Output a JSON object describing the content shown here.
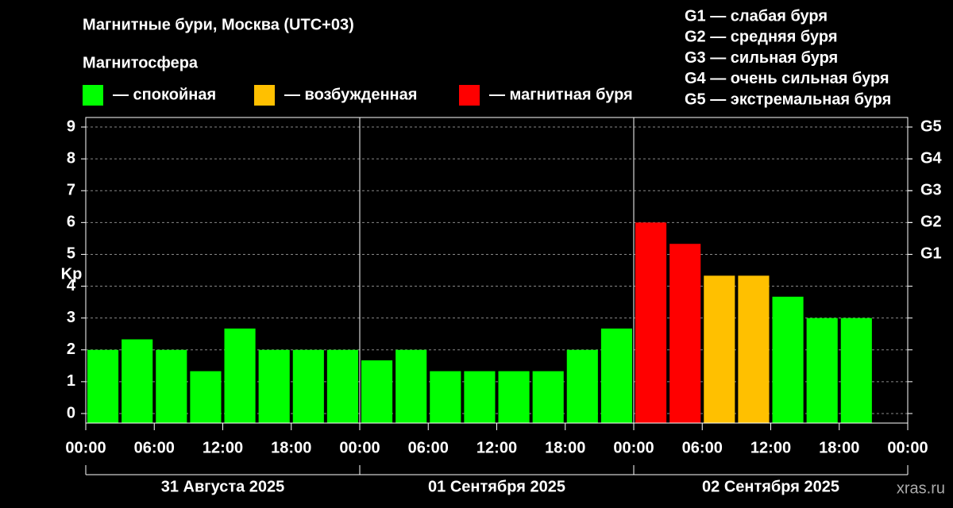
{
  "chart_data": {
    "type": "bar",
    "title": "Магнитные бури, Москва (UTC+03)",
    "legend_title": "Магнитосфера",
    "legend": [
      {
        "label": "— спокойная",
        "color": "#00ff00"
      },
      {
        "label": "— возбужденная",
        "color": "#ffc000"
      },
      {
        "label": "— магнитная буря",
        "color": "#ff0000"
      }
    ],
    "storm_levels": [
      "G1 — слабая буря",
      "G2 — средняя буря",
      "G3 — сильная буря",
      "G4 — очень сильная буря",
      "G5 — экстремальная буря"
    ],
    "ylabel": "Kp",
    "x": [
      0,
      3,
      6,
      9,
      12,
      15,
      18,
      21,
      24,
      27,
      30,
      33,
      36,
      39,
      42,
      45,
      48,
      51,
      54,
      57,
      60,
      63,
      66,
      69
    ],
    "values": [
      2,
      2.33,
      2,
      1.33,
      2.67,
      2,
      2,
      2,
      1.67,
      2,
      1.33,
      1.33,
      1.33,
      1.33,
      2,
      2.67,
      6,
      5.33,
      4.33,
      4.33,
      3.67,
      3,
      3,
      null
    ],
    "colors": [
      "#00ff00",
      "#00ff00",
      "#00ff00",
      "#00ff00",
      "#00ff00",
      "#00ff00",
      "#00ff00",
      "#00ff00",
      "#00ff00",
      "#00ff00",
      "#00ff00",
      "#00ff00",
      "#00ff00",
      "#00ff00",
      "#00ff00",
      "#00ff00",
      "#ff0000",
      "#ff0000",
      "#ffc000",
      "#ffc000",
      "#00ff00",
      "#00ff00",
      "#00ff00",
      null
    ],
    "bar_width": 3,
    "xlim": [
      0,
      72
    ],
    "xticks": [
      {
        "value": 0,
        "label": "00:00"
      },
      {
        "value": 6,
        "label": "06:00"
      },
      {
        "value": 12,
        "label": "12:00"
      },
      {
        "value": 18,
        "label": "18:00"
      },
      {
        "value": 24,
        "label": "00:00"
      },
      {
        "value": 30,
        "label": "06:00"
      },
      {
        "value": 36,
        "label": "12:00"
      },
      {
        "value": 42,
        "label": "18:00"
      },
      {
        "value": 48,
        "label": "00:00"
      },
      {
        "value": 54,
        "label": "06:00"
      },
      {
        "value": 60,
        "label": "12:00"
      },
      {
        "value": 66,
        "label": "18:00"
      },
      {
        "value": 72,
        "label": "00:00"
      }
    ],
    "days": [
      {
        "start": 0,
        "end": 24,
        "label": "31 Августа 2025"
      },
      {
        "start": 24,
        "end": 48,
        "label": "01 Сентября 2025"
      },
      {
        "start": 48,
        "end": 72,
        "label": "02 Сентября 2025"
      }
    ],
    "ylim": [
      -0.3,
      9.3
    ],
    "yticks": [
      0,
      1,
      2,
      3,
      4,
      5,
      6,
      7,
      8,
      9
    ],
    "y2lim": [
      -0.3,
      9.3
    ],
    "y2ticks": [
      {
        "value": 5,
        "label": "G1"
      },
      {
        "value": 6,
        "label": "G2"
      },
      {
        "value": 7,
        "label": "G3"
      },
      {
        "value": 8,
        "label": "G4"
      },
      {
        "value": 9,
        "label": "G5"
      }
    ],
    "grid": true,
    "watermark": "xras.ru"
  }
}
